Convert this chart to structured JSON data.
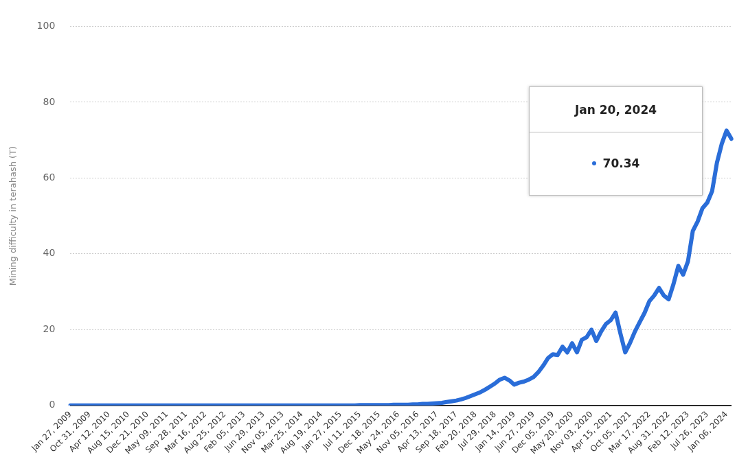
{
  "chart_data": {
    "type": "line",
    "ylabel": "Mining difficulty in terahash (T)",
    "categories": [
      "Jan 27, 2009",
      null,
      null,
      null,
      "Oct 31, 2009",
      null,
      null,
      null,
      "Apr 12, 2010",
      null,
      null,
      null,
      "Aug 15, 2010",
      null,
      null,
      null,
      "Dec 21, 2010",
      null,
      null,
      null,
      "May 09, 2011",
      null,
      null,
      null,
      "Sep 28, 2011",
      null,
      null,
      null,
      "Mar 16, 2012",
      null,
      null,
      null,
      "Aug 25, 2012",
      null,
      null,
      null,
      "Feb 05, 2013",
      null,
      null,
      null,
      "Jun 29, 2013",
      null,
      null,
      null,
      "Nov 05, 2013",
      null,
      null,
      null,
      "Mar 25, 2014",
      null,
      null,
      null,
      "Aug 19, 2014",
      null,
      null,
      null,
      "Jan 27, 2015",
      null,
      null,
      null,
      "Jul 11, 2015",
      null,
      null,
      null,
      "Dec 18, 2015",
      null,
      null,
      null,
      "May 24, 2016",
      null,
      null,
      null,
      "Nov 05, 2016",
      null,
      null,
      null,
      "Apr 13, 2017",
      null,
      null,
      null,
      "Sep 18, 2017",
      null,
      null,
      null,
      "Feb 20, 2018",
      null,
      null,
      null,
      "Jul 29, 2018",
      null,
      null,
      null,
      "Jan 14, 2019",
      null,
      null,
      null,
      "Jun 27, 2019",
      null,
      null,
      null,
      "Dec 05, 2019",
      null,
      null,
      null,
      "May 20, 2020",
      null,
      null,
      null,
      "Nov 03, 2020",
      null,
      null,
      null,
      "Apr 15, 2021",
      null,
      null,
      null,
      "Oct 05, 2021",
      null,
      null,
      null,
      "Mar 17, 2022",
      null,
      null,
      null,
      "Aug 31, 2022",
      null,
      null,
      null,
      "Feb 12, 2023",
      null,
      null,
      null,
      "Jul 26, 2023",
      null,
      null,
      null,
      "Jan 06, 2024",
      null
    ],
    "series": [
      {
        "color": "#2a6dd8",
        "values": [
          0,
          0,
          0,
          0,
          0,
          0,
          0,
          0,
          0,
          0,
          0,
          0,
          0,
          0,
          0,
          0,
          0,
          0,
          0,
          0,
          0,
          0,
          0,
          0,
          0,
          0,
          0,
          0,
          0,
          0,
          0,
          0,
          0,
          0,
          0,
          0,
          0,
          0,
          0,
          0,
          0,
          0,
          0,
          0,
          0,
          0,
          0,
          0,
          0,
          0,
          0,
          0,
          0,
          0,
          0,
          0,
          0,
          0,
          0,
          0,
          0.1,
          0.1,
          0.1,
          0.1,
          0.1,
          0.1,
          0.1,
          0.2,
          0.2,
          0.2,
          0.2,
          0.3,
          0.3,
          0.4,
          0.4,
          0.5,
          0.6,
          0.7,
          0.9,
          1.1,
          1.3,
          1.6,
          2.0,
          2.5,
          3.0,
          3.5,
          4.2,
          5.0,
          5.8,
          6.8,
          7.3,
          6.6,
          5.5,
          6.0,
          6.3,
          6.8,
          7.5,
          8.8,
          10.5,
          12.5,
          13.5,
          13.3,
          15.5,
          14.0,
          16.4,
          14.0,
          17.3,
          18.0,
          20.0,
          17.0,
          19.5,
          21.5,
          22.5,
          24.5,
          19.0,
          14.0,
          16.5,
          19.5,
          22.0,
          24.4,
          27.5,
          29.0,
          31.0,
          29.0,
          28.0,
          32.0,
          36.8,
          34.5,
          38.0,
          46.0,
          48.5,
          52.0,
          53.5,
          56.5,
          64.0,
          69.0,
          72.5,
          70.34
        ]
      }
    ],
    "ylim": [
      0,
      100
    ],
    "yticks": [
      0,
      20,
      40,
      60,
      80,
      100
    ],
    "grid": "y",
    "legend": false,
    "annotations": [
      "Jan 20, 2024",
      "70.34"
    ]
  }
}
